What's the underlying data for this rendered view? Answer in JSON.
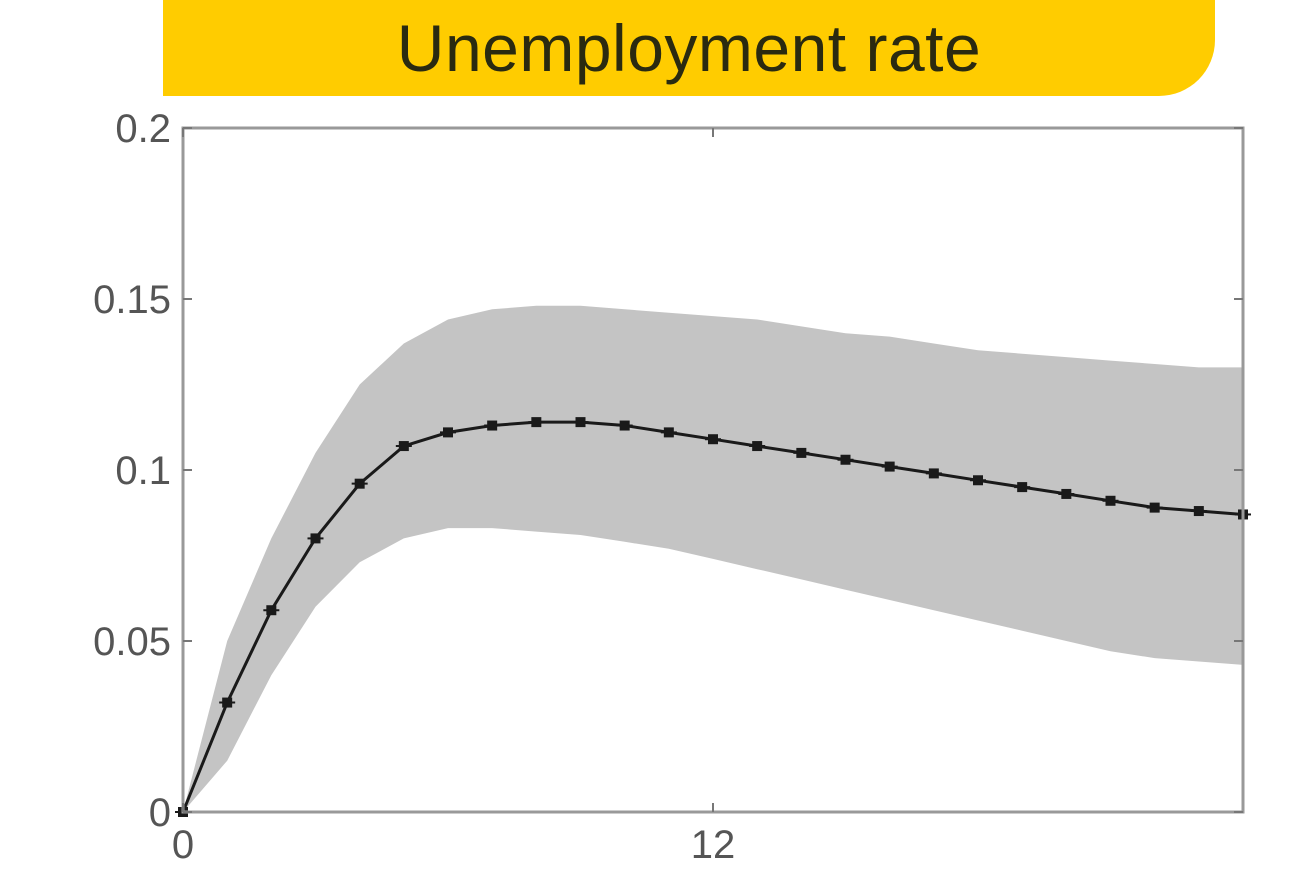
{
  "title": "Unemployment rate",
  "chart_data": {
    "type": "line",
    "title": "Unemployment rate",
    "xlabel": "",
    "ylabel": "",
    "xlim": [
      0,
      24
    ],
    "ylim": [
      0,
      0.2
    ],
    "xticks": [
      0,
      12
    ],
    "yticks": [
      0,
      0.05,
      0.1,
      0.15,
      0.2
    ],
    "xtick_labels": [
      "0",
      "12"
    ],
    "ytick_labels": [
      "0",
      "0.05",
      "0.1",
      "0.15",
      "0.2"
    ],
    "grid": false,
    "series": [
      {
        "x": [
          0,
          1,
          2,
          3,
          4,
          5,
          6,
          7,
          8,
          9,
          10,
          11,
          12,
          13,
          14,
          15,
          16,
          17,
          18,
          19,
          20,
          21,
          22,
          23,
          24
        ],
        "values": [
          0,
          0.032,
          0.059,
          0.08,
          0.096,
          0.107,
          0.111,
          0.113,
          0.114,
          0.114,
          0.113,
          0.111,
          0.109,
          0.107,
          0.105,
          0.103,
          0.101,
          0.099,
          0.097,
          0.095,
          0.093,
          0.091,
          0.089,
          0.088,
          0.087
        ],
        "markers": true,
        "color": "#1a1a1a"
      }
    ],
    "band": {
      "x": [
        0,
        1,
        2,
        3,
        4,
        5,
        6,
        7,
        8,
        9,
        10,
        11,
        12,
        13,
        14,
        15,
        16,
        17,
        18,
        19,
        20,
        21,
        22,
        23,
        24
      ],
      "upper": [
        0,
        0.05,
        0.08,
        0.105,
        0.125,
        0.137,
        0.144,
        0.147,
        0.148,
        0.148,
        0.147,
        0.146,
        0.145,
        0.144,
        0.142,
        0.14,
        0.139,
        0.137,
        0.135,
        0.134,
        0.133,
        0.132,
        0.131,
        0.13,
        0.13
      ],
      "lower": [
        0,
        0.015,
        0.04,
        0.06,
        0.073,
        0.08,
        0.083,
        0.083,
        0.082,
        0.081,
        0.079,
        0.077,
        0.074,
        0.071,
        0.068,
        0.065,
        0.062,
        0.059,
        0.056,
        0.053,
        0.05,
        0.047,
        0.045,
        0.044,
        0.043
      ],
      "color": "#c4c4c4"
    }
  }
}
